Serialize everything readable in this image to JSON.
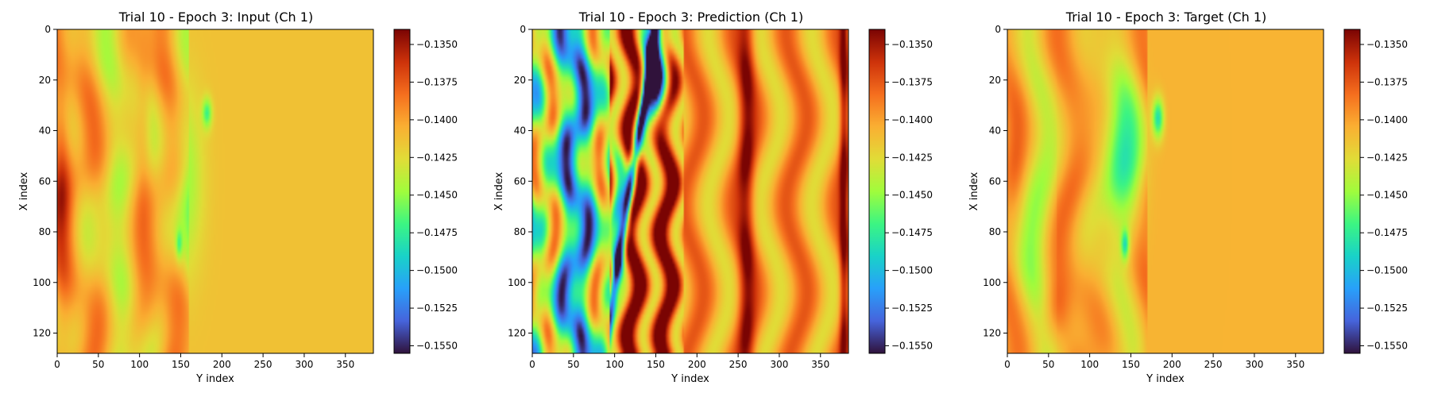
{
  "colors": {
    "colormap": "turbo",
    "axis": "#000000"
  },
  "chart_data": [
    {
      "type": "heatmap",
      "title": "Trial 10 - Epoch 3: Input (Ch 1)",
      "xlabel": "Y index",
      "ylabel": "X index",
      "xlim": [
        0,
        384
      ],
      "ylim": [
        128,
        0
      ],
      "xticks": [
        0,
        50,
        100,
        150,
        200,
        250,
        300,
        350
      ],
      "yticks": [
        0,
        20,
        40,
        60,
        80,
        100,
        120
      ],
      "colorbar": {
        "min": -0.1555,
        "max": -0.134,
        "ticks": [
          "−0.1350",
          "−0.1375",
          "−0.1400",
          "−0.1425",
          "−0.1450",
          "−0.1475",
          "−0.1500",
          "−0.1525",
          "−0.1550"
        ]
      },
      "field": "input"
    },
    {
      "type": "heatmap",
      "title": "Trial 10 - Epoch 3: Prediction (Ch 1)",
      "xlabel": "Y index",
      "ylabel": "X index",
      "xlim": [
        0,
        384
      ],
      "ylim": [
        128,
        0
      ],
      "xticks": [
        0,
        50,
        100,
        150,
        200,
        250,
        300,
        350
      ],
      "yticks": [
        0,
        20,
        40,
        60,
        80,
        100,
        120
      ],
      "colorbar": {
        "min": -0.1555,
        "max": -0.134,
        "ticks": [
          "−0.1350",
          "−0.1375",
          "−0.1400",
          "−0.1425",
          "−0.1450",
          "−0.1475",
          "−0.1500",
          "−0.1525",
          "−0.1550"
        ]
      },
      "field": "prediction"
    },
    {
      "type": "heatmap",
      "title": "Trial 10 - Epoch 3: Target (Ch 1)",
      "xlabel": "Y index",
      "ylabel": "X index",
      "xlim": [
        0,
        384
      ],
      "ylim": [
        128,
        0
      ],
      "xticks": [
        0,
        50,
        100,
        150,
        200,
        250,
        300,
        350
      ],
      "yticks": [
        0,
        20,
        40,
        60,
        80,
        100,
        120
      ],
      "colorbar": {
        "min": -0.1555,
        "max": -0.134,
        "ticks": [
          "−0.1350",
          "−0.1375",
          "−0.1400",
          "−0.1425",
          "−0.1450",
          "−0.1475",
          "−0.1500",
          "−0.1525",
          "−0.1550"
        ]
      },
      "field": "target"
    }
  ]
}
